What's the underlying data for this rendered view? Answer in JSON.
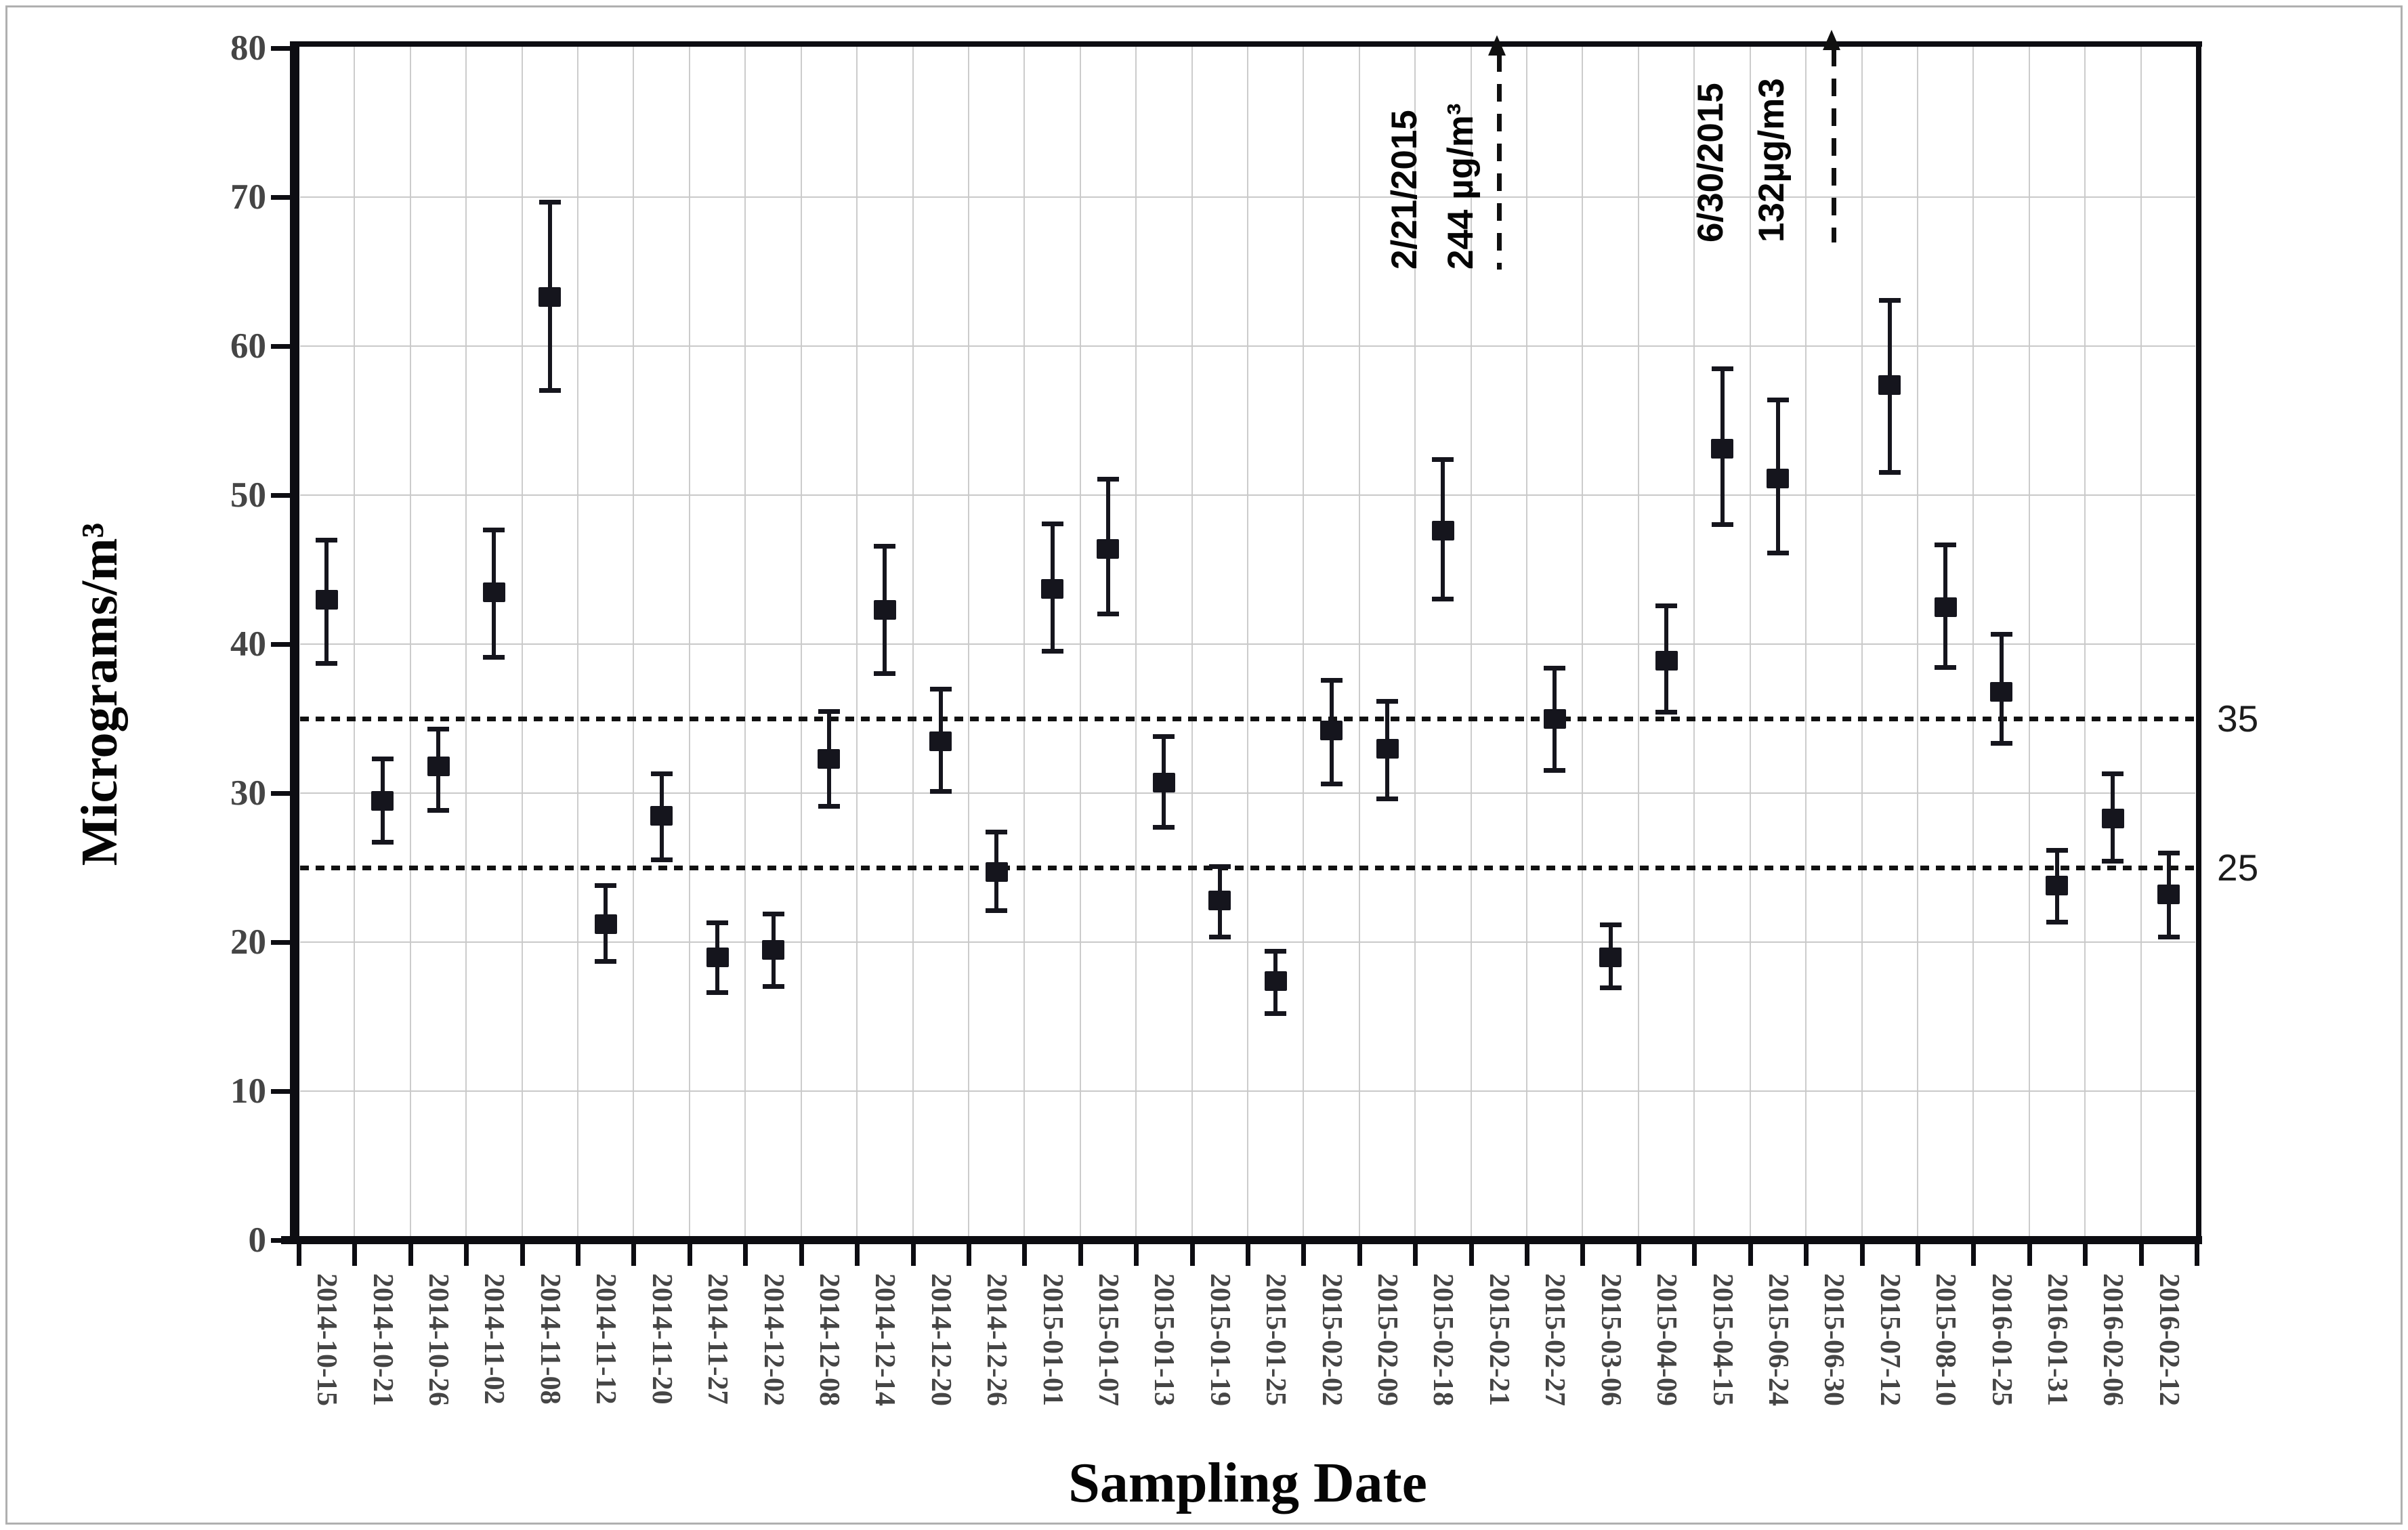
{
  "chart_data": {
    "type": "scatter",
    "title": "",
    "xlabel": "Sampling Date",
    "ylabel": "Micrograms/m³",
    "ylim": [
      0,
      80
    ],
    "yticks": [
      0,
      10,
      20,
      30,
      40,
      50,
      60,
      70,
      80
    ],
    "grid": true,
    "legend": "none",
    "marker": "filled-square-with-error-bars",
    "marker_color": "#15151d",
    "gridline_color": "#c9c9c9",
    "categories": [
      "2014-10-15",
      "2014-10-21",
      "2014-10-26",
      "2014-11-02",
      "2014-11-08",
      "2014-11-12",
      "2014-11-20",
      "2014-11-27",
      "2014-12-02",
      "2014-12-08",
      "2014-12-14",
      "2014-12-20",
      "2014-12-26",
      "2015-01-01",
      "2015-01-07",
      "2015-01-13",
      "2015-01-19",
      "2015-01-25",
      "2015-02-02",
      "2015-02-09",
      "2015-02-18",
      "2015-02-21",
      "2015-02-27",
      "2015-03-06",
      "2015-04-09",
      "2015-04-15",
      "2015-06-24",
      "2015-06-30",
      "2015-07-12",
      "2015-08-10",
      "2016-01-25",
      "2016-01-31",
      "2016-02-06",
      "2016-02-12"
    ],
    "values": [
      43.0,
      29.5,
      31.8,
      43.5,
      63.3,
      21.2,
      28.5,
      19.0,
      19.5,
      32.3,
      42.3,
      33.5,
      24.7,
      43.7,
      46.4,
      30.7,
      22.8,
      17.4,
      34.2,
      33.0,
      47.6,
      null,
      35.0,
      19.0,
      38.9,
      53.1,
      51.1,
      null,
      57.4,
      42.5,
      36.8,
      23.8,
      28.3,
      23.2
    ],
    "err_up": [
      4.0,
      2.8,
      2.5,
      4.2,
      6.4,
      2.6,
      2.8,
      2.3,
      2.4,
      3.2,
      4.3,
      3.5,
      2.7,
      4.4,
      4.7,
      3.1,
      2.3,
      2.0,
      3.4,
      3.2,
      4.8,
      null,
      3.4,
      2.2,
      3.7,
      5.4,
      5.3,
      null,
      5.7,
      4.2,
      3.9,
      2.4,
      3.0,
      2.8
    ],
    "err_down": [
      4.3,
      2.8,
      3.0,
      4.4,
      6.3,
      2.5,
      3.0,
      2.4,
      2.5,
      3.2,
      4.3,
      3.4,
      2.6,
      4.2,
      4.4,
      3.0,
      2.5,
      2.2,
      3.6,
      3.4,
      4.6,
      null,
      3.5,
      2.1,
      3.5,
      5.1,
      5.0,
      null,
      5.9,
      4.1,
      3.5,
      2.5,
      2.9,
      2.9
    ],
    "reference_lines": [
      {
        "value": 35,
        "label": "35",
        "style": "dotted"
      },
      {
        "value": 25,
        "label": "25",
        "style": "dotted"
      }
    ],
    "offscale_annotations": [
      {
        "category_index": 21,
        "date_label": "2/21/2015",
        "value_label": "244 µg/m³"
      },
      {
        "category_index": 27,
        "date_label": "6/30/2015",
        "value_label": "132µg/m3"
      }
    ]
  }
}
